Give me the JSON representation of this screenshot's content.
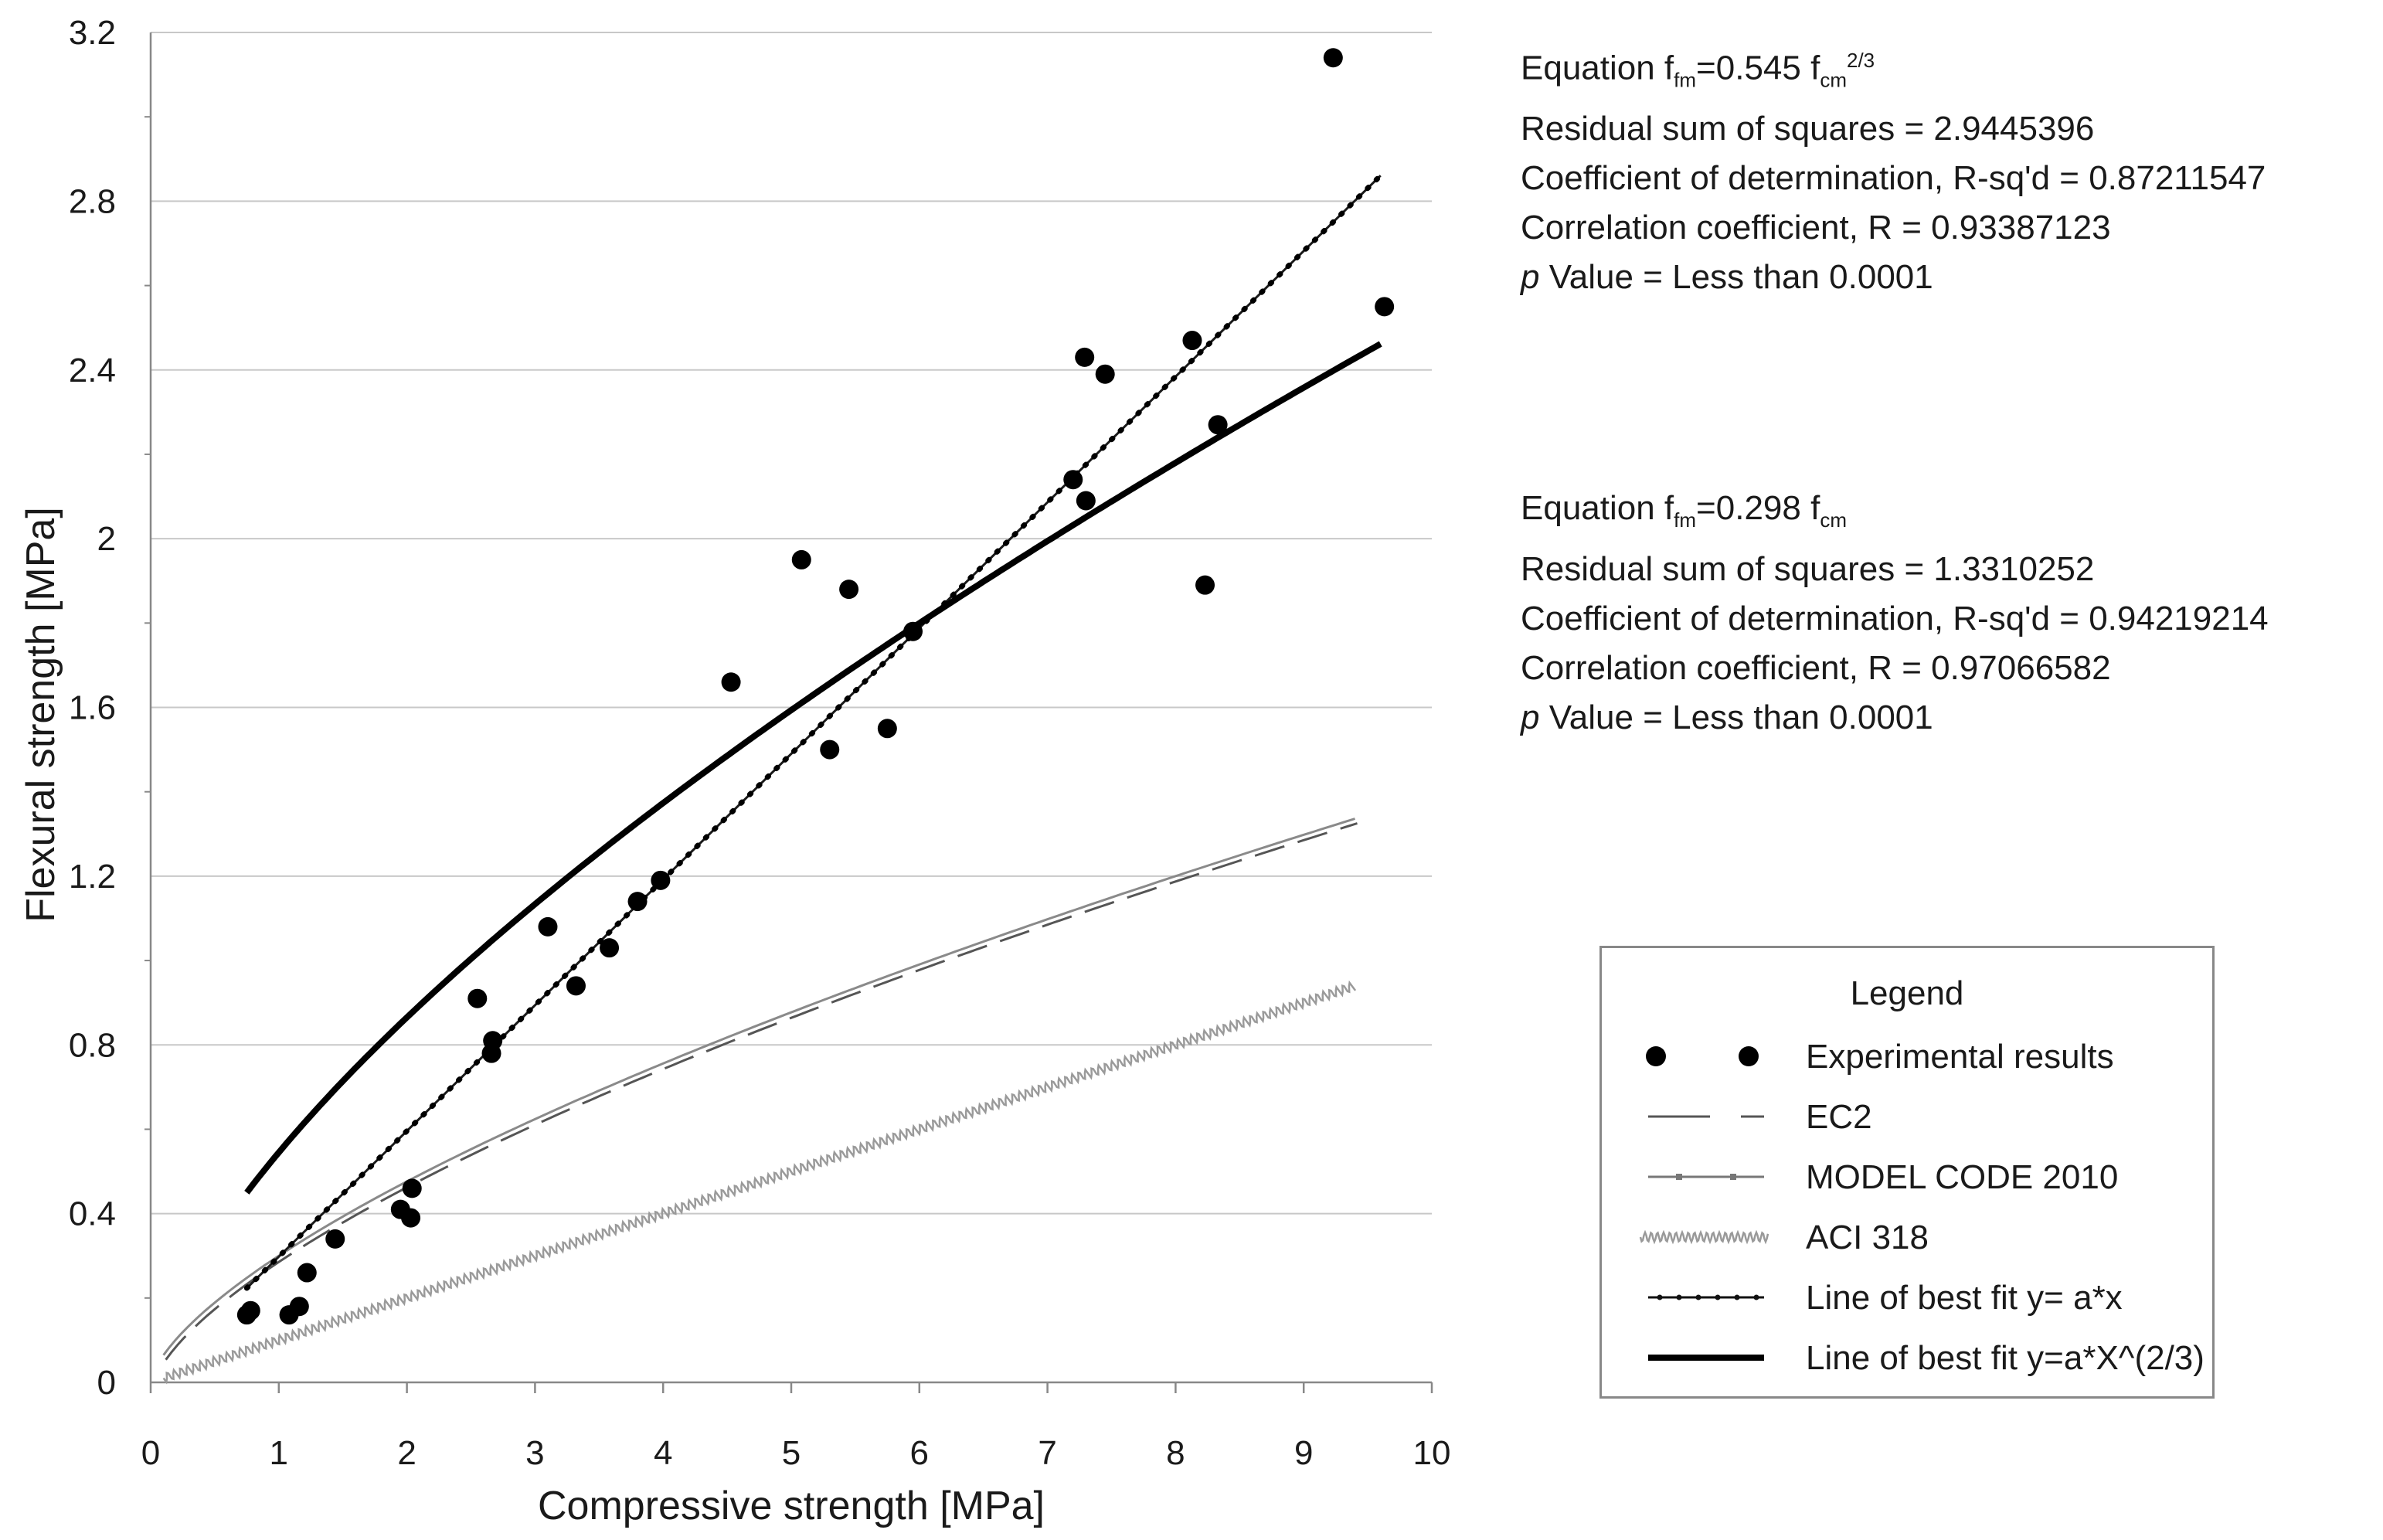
{
  "chart_data": {
    "type": "scatter",
    "xlabel": "Compressive strength [MPa]",
    "ylabel": "Flexural strength [MPa]",
    "xlim": [
      0,
      10
    ],
    "ylim": [
      0,
      3.2
    ],
    "x_ticks": [
      "0",
      "1",
      "2",
      "3",
      "4",
      "5",
      "6",
      "7",
      "8",
      "9",
      "10"
    ],
    "y_ticks": [
      "0",
      "0.4",
      "0.8",
      "1.2",
      "1.6",
      "2",
      "2.4",
      "2.8",
      "3.2"
    ],
    "grid": "horizontal",
    "points": [
      {
        "x": 0.75,
        "y": 0.16
      },
      {
        "x": 0.78,
        "y": 0.17
      },
      {
        "x": 1.08,
        "y": 0.16
      },
      {
        "x": 1.16,
        "y": 0.18
      },
      {
        "x": 1.22,
        "y": 0.26
      },
      {
        "x": 1.44,
        "y": 0.34
      },
      {
        "x": 1.95,
        "y": 0.41
      },
      {
        "x": 2.03,
        "y": 0.39
      },
      {
        "x": 2.04,
        "y": 0.46
      },
      {
        "x": 2.55,
        "y": 0.91
      },
      {
        "x": 2.66,
        "y": 0.78
      },
      {
        "x": 2.67,
        "y": 0.81
      },
      {
        "x": 3.1,
        "y": 1.08
      },
      {
        "x": 3.32,
        "y": 0.94
      },
      {
        "x": 3.58,
        "y": 1.03
      },
      {
        "x": 3.8,
        "y": 1.14
      },
      {
        "x": 3.98,
        "y": 1.19
      },
      {
        "x": 4.53,
        "y": 1.66
      },
      {
        "x": 5.08,
        "y": 1.95
      },
      {
        "x": 5.3,
        "y": 1.5
      },
      {
        "x": 5.45,
        "y": 1.88
      },
      {
        "x": 5.75,
        "y": 1.55
      },
      {
        "x": 5.95,
        "y": 1.78
      },
      {
        "x": 7.2,
        "y": 2.14
      },
      {
        "x": 7.29,
        "y": 2.43
      },
      {
        "x": 7.3,
        "y": 2.09
      },
      {
        "x": 7.45,
        "y": 2.39
      },
      {
        "x": 8.13,
        "y": 2.47
      },
      {
        "x": 8.23,
        "y": 1.89
      },
      {
        "x": 8.33,
        "y": 2.27
      },
      {
        "x": 9.23,
        "y": 3.14
      },
      {
        "x": 9.63,
        "y": 2.55
      }
    ],
    "series": [
      {
        "name": "EC2",
        "formula": "0.3*x^(2/3)",
        "x_range": [
          0.1,
          9.4
        ]
      },
      {
        "name": "MODEL CODE 2010",
        "formula": "0.3*x^(2/3)",
        "x_range": [
          0.1,
          9.4
        ]
      },
      {
        "name": "ACI 318",
        "formula": "0.1*x",
        "x_range": [
          0.1,
          9.4
        ]
      },
      {
        "name": "Line of best fit y= a*x",
        "formula": "0.298*x",
        "x_range": [
          0.75,
          9.6
        ]
      },
      {
        "name": "Line of best fit y=a*X^(2/3)",
        "formula": "0.545*x^(2/3)",
        "x_range": [
          0.75,
          9.6
        ]
      }
    ],
    "fit_a": {
      "equation_label": "Equation f",
      "equation_sub1": "fm",
      "equation_coef": "=0.545 f",
      "equation_sub2": "cm",
      "equation_sup": "2/3",
      "rss": "Residual sum of squares = 2.9445396",
      "r2": "Coefficient of determination, R-sq'd = 0.87211547",
      "r": "Correlation coefficient, R = 0.93387123",
      "p_italic": "p",
      "p_rest": " Value = Less than 0.0001"
    },
    "fit_b": {
      "equation_label": "Equation f",
      "equation_sub1": "fm",
      "equation_coef": "=0.298 f",
      "equation_sub2": "cm",
      "rss": "Residual sum of squares = 1.3310252",
      "r2": "Coefficient of determination, R-sq'd = 0.94219214",
      "r": "Correlation coefficient, R = 0.97066582",
      "p_italic": "p",
      "p_rest": " Value = Less than 0.0001"
    },
    "legend": {
      "title": "Legend",
      "items": [
        "Experimental results",
        "EC2",
        "MODEL CODE 2010",
        "ACI 318",
        "Line of best fit y= a*x",
        "Line of best fit y=a*X^(2/3)"
      ]
    }
  }
}
